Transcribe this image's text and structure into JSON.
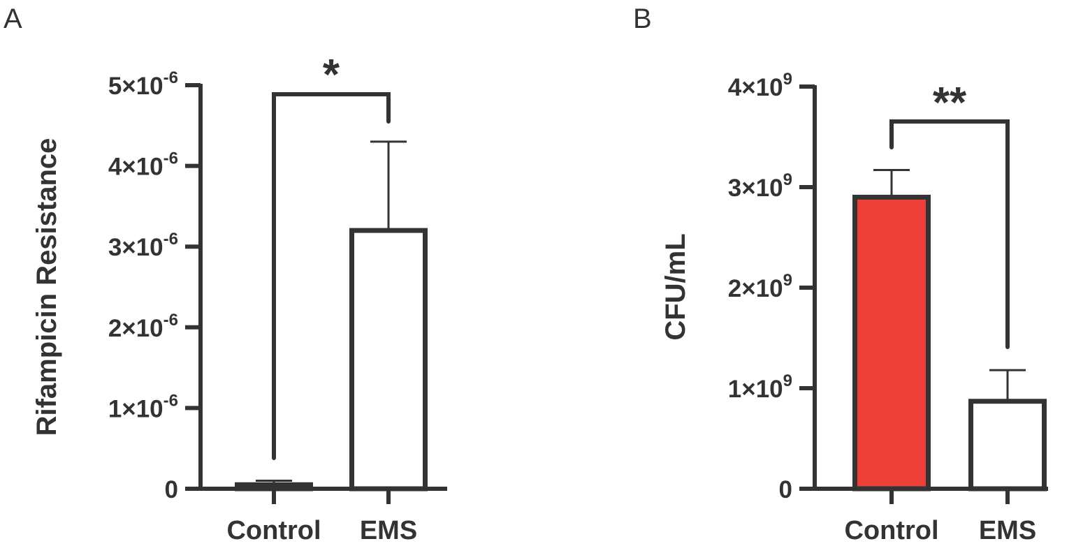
{
  "chart_data": [
    {
      "panel": "A",
      "type": "bar",
      "categories": [
        "Control",
        "EMS"
      ],
      "values": [
        5e-08,
        3.2e-06
      ],
      "error_plus": [
        5e-08,
        1.1e-06
      ],
      "colors": [
        "#ffffff",
        "#ffffff"
      ],
      "ylabel": "Rifampicin Resistance",
      "xlabel": "",
      "ylim": [
        0,
        5e-06
      ],
      "ytick_mantissa": [
        "0",
        "1",
        "2",
        "3",
        "4",
        "5"
      ],
      "ytick_base": "×10",
      "ytick_exponent": "-6",
      "yticks": [
        0,
        1e-06,
        2e-06,
        3e-06,
        4e-06,
        5e-06
      ],
      "significance": "*",
      "grid": false,
      "legend": "none"
    },
    {
      "panel": "B",
      "type": "bar",
      "categories": [
        "Control",
        "EMS"
      ],
      "values": [
        2900000000.0,
        870000000.0
      ],
      "error_plus": [
        270000000.0,
        310000000.0
      ],
      "colors": [
        "#ee3f38",
        "#ffffff"
      ],
      "ylabel": "CFU/mL",
      "xlabel": "",
      "ylim": [
        0,
        4000000000.0
      ],
      "ytick_mantissa": [
        "0",
        "1",
        "2",
        "3",
        "4"
      ],
      "ytick_base": "×10",
      "ytick_exponent": "9",
      "yticks": [
        0,
        1000000000.0,
        2000000000.0,
        3000000000.0,
        4000000000.0
      ],
      "significance": "**",
      "grid": false,
      "legend": "none"
    }
  ],
  "colors": {
    "axis": "#333333",
    "bar_edge": "#333333"
  }
}
